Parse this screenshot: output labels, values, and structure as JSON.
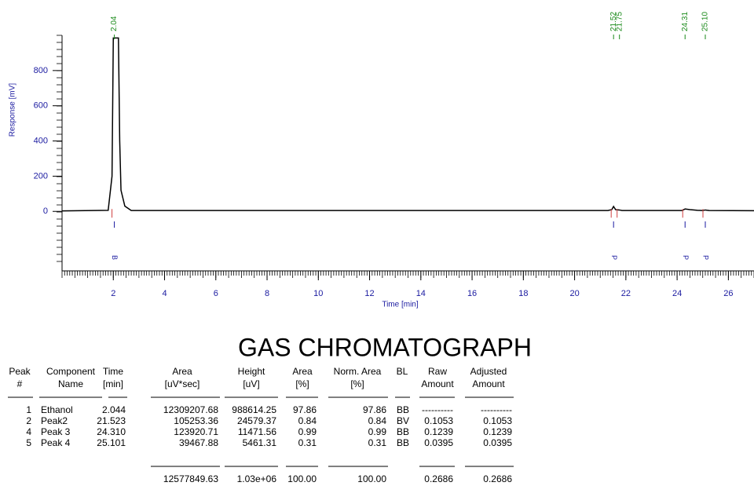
{
  "chart_data": {
    "type": "line",
    "xlabel": "Time [min]",
    "ylabel": "Response [mV]",
    "xlim": [
      0,
      27
    ],
    "xticks": [
      2,
      4,
      6,
      8,
      10,
      12,
      14,
      16,
      18,
      20,
      22,
      24,
      26
    ],
    "ylim": [
      -320,
      1000
    ],
    "yticks": [
      0,
      200,
      400,
      600,
      800
    ],
    "series": [
      {
        "color": "#000000",
        "x": [
          0,
          1.8,
          1.95,
          2.0,
          2.04,
          2.2,
          2.25,
          2.3,
          2.45,
          2.7,
          21.3,
          21.45,
          21.52,
          21.6,
          21.75,
          21.85,
          24.2,
          24.31,
          24.5,
          24.8,
          25.0,
          25.1,
          25.25,
          27
        ],
        "values": [
          3,
          6,
          200,
          985,
          985,
          985,
          400,
          120,
          30,
          5,
          5,
          10,
          28,
          10,
          8,
          5,
          5,
          14,
          10,
          6,
          5,
          8,
          5,
          4
        ]
      }
    ],
    "annotations": [
      {
        "x": 2.04,
        "label": "2.04"
      },
      {
        "x": 21.52,
        "label": "21.52"
      },
      {
        "x": 21.75,
        "label": "21.75"
      },
      {
        "x": 24.31,
        "label": "24.31"
      },
      {
        "x": 25.1,
        "label": "25.10"
      }
    ],
    "codes": [
      {
        "x": 2.04,
        "label": "B"
      },
      {
        "x": 21.52,
        "label": "P"
      },
      {
        "x": 24.31,
        "label": "P"
      },
      {
        "x": 25.1,
        "label": "P"
      }
    ]
  },
  "table": {
    "title": "GAS CHROMATOGRAPH",
    "headers": [
      [
        "Peak",
        "#"
      ],
      [
        "Component",
        "Name"
      ],
      [
        "Time",
        "[min]"
      ],
      [
        "Area",
        "[uV*sec]"
      ],
      [
        "Height",
        "[uV]"
      ],
      [
        "Area",
        "[%]"
      ],
      [
        "Norm. Area",
        "[%]"
      ],
      [
        "BL"
      ],
      [
        "Raw",
        "Amount"
      ],
      [
        "Adjusted",
        "Amount"
      ]
    ],
    "rows": [
      [
        "1",
        "Ethanol",
        "2.044",
        "12309207.68",
        "988614.25",
        "97.86",
        "97.86",
        "BB",
        "----------",
        "----------"
      ],
      [
        "2",
        "Peak2",
        "21.523",
        "105253.36",
        "24579.37",
        "0.84",
        "0.84",
        "BV",
        "0.1053",
        "0.1053"
      ],
      [
        "4",
        "Peak 3",
        "24.310",
        "123920.71",
        "11471.56",
        "0.99",
        "0.99",
        "BB",
        "0.1239",
        "0.1239"
      ],
      [
        "5",
        "Peak 4",
        "25.101",
        "39467.88",
        "5461.31",
        "0.31",
        "0.31",
        "BB",
        "0.0395",
        "0.0395"
      ]
    ],
    "totals": [
      {
        "col": 3,
        "text": "12577849.63"
      },
      {
        "col": 4,
        "text": "1.03e+06"
      },
      {
        "col": 5,
        "text": "100.00"
      },
      {
        "col": 6,
        "text": "100.00"
      },
      {
        "col": 8,
        "text": "0.2686"
      },
      {
        "col": 9,
        "text": "0.2686"
      }
    ]
  }
}
